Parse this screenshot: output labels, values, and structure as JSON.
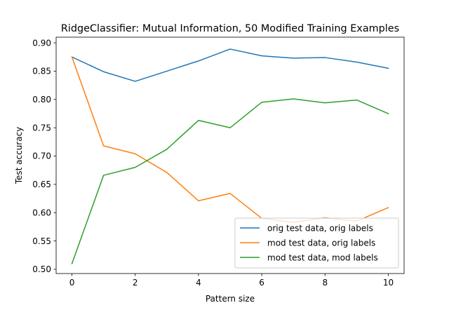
{
  "chart_data": {
    "type": "line",
    "title": "RidgeClassifier: Mutual Information, 50 Modified Training Examples",
    "xlabel": "Pattern size",
    "ylabel": "Test accuracy",
    "xlim": [
      -0.5,
      10.5
    ],
    "ylim": [
      0.4925,
      0.91
    ],
    "xticks": [
      0,
      2,
      4,
      6,
      8,
      10
    ],
    "yticks": [
      0.5,
      0.55,
      0.6,
      0.65,
      0.7,
      0.75,
      0.8,
      0.85,
      0.9
    ],
    "ytick_labels": [
      "0.50",
      "0.55",
      "0.60",
      "0.65",
      "0.70",
      "0.75",
      "0.80",
      "0.85",
      "0.90"
    ],
    "grid": false,
    "legend_position": "bottom-right",
    "x": [
      0,
      1,
      2,
      3,
      4,
      5,
      6,
      7,
      8,
      9,
      10
    ],
    "series": [
      {
        "name": "orig test data, orig labels",
        "color": "#1f77b4",
        "values": [
          0.875,
          0.849,
          0.832,
          0.85,
          0.868,
          0.889,
          0.877,
          0.873,
          0.874,
          0.866,
          0.855
        ]
      },
      {
        "name": "mod test data, orig labels",
        "color": "#ff7f0e",
        "values": [
          0.875,
          0.718,
          0.704,
          0.671,
          0.621,
          0.634,
          0.59,
          0.583,
          0.591,
          0.585,
          0.609
        ]
      },
      {
        "name": "mod test data, mod labels",
        "color": "#2ca02c",
        "values": [
          0.51,
          0.666,
          0.68,
          0.712,
          0.763,
          0.75,
          0.795,
          0.801,
          0.794,
          0.799,
          0.775
        ]
      }
    ]
  }
}
